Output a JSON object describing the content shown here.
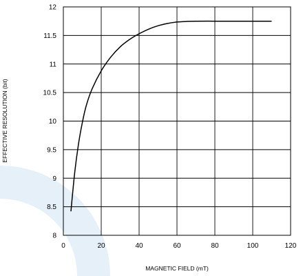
{
  "chart_data": {
    "type": "line",
    "title": "",
    "xlabel": "MAGNETIC FIELD (mT)",
    "ylabel": "EFFECTIVE RESOLUTION (bit)",
    "xlim": [
      0,
      120
    ],
    "ylim": [
      8,
      12
    ],
    "x_ticks": [
      0,
      20,
      40,
      60,
      80,
      100,
      120
    ],
    "y_ticks": [
      8,
      8.5,
      9,
      9.5,
      10,
      10.5,
      11,
      11.5,
      12
    ],
    "x_tick_labels": [
      "0",
      "20",
      "40",
      "60",
      "80",
      "100",
      "120"
    ],
    "y_tick_labels": [
      "8",
      "8.5",
      "9",
      "9.5",
      "10",
      "10.5",
      "11",
      "11.5",
      "12"
    ],
    "grid": true,
    "series": [
      {
        "x": [
          4,
          6,
          8,
          10,
          12,
          15,
          20,
          25,
          30,
          35,
          40,
          45,
          50,
          55,
          60,
          65,
          70,
          80,
          90,
          100,
          110
        ],
        "y": [
          8.42,
          9.1,
          9.6,
          9.97,
          10.26,
          10.55,
          10.88,
          11.12,
          11.3,
          11.43,
          11.53,
          11.61,
          11.67,
          11.71,
          11.735,
          11.745,
          11.75,
          11.75,
          11.75,
          11.75,
          11.75
        ]
      }
    ]
  }
}
